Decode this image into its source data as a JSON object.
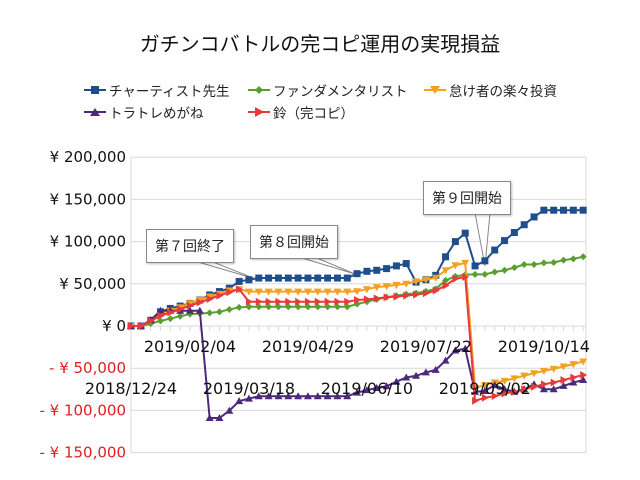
{
  "chart_data": {
    "type": "line",
    "title": "ガチンコバトルの完コピ運用の実現損益",
    "xlabel": "",
    "ylabel": "",
    "ylim": [
      -150000,
      200000
    ],
    "yticks": [
      200000,
      150000,
      100000,
      50000,
      0,
      -50000,
      -100000,
      -150000
    ],
    "ytick_labels": [
      "¥ 200,000",
      "¥ 150,000",
      "¥ 100,000",
      "¥ 50,000",
      "¥ 0",
      "- ¥ 50,000",
      "- ¥ 100,000",
      "- ¥ 150,000"
    ],
    "negative_label_color": "#e02020",
    "grid": true,
    "legend_placement": "top",
    "x_tick_labels": [
      "2018/12/24",
      "2019/02/04",
      "2019/03/18",
      "2019/04/29",
      "2019/06/10",
      "2019/07/22",
      "2019/09/02",
      "2019/10/14"
    ],
    "x": [
      "2018/12/24",
      "2018/12/31",
      "2019/01/07",
      "2019/01/14",
      "2019/01/21",
      "2019/01/28",
      "2019/02/04",
      "2019/02/11",
      "2019/02/18",
      "2019/02/25",
      "2019/03/04",
      "2019/03/11",
      "2019/03/18",
      "2019/03/25",
      "2019/04/01",
      "2019/04/08",
      "2019/04/15",
      "2019/04/22",
      "2019/04/29",
      "2019/05/06",
      "2019/05/13",
      "2019/05/20",
      "2019/05/27",
      "2019/06/03",
      "2019/06/10",
      "2019/06/17",
      "2019/06/24",
      "2019/07/01",
      "2019/07/08",
      "2019/07/15",
      "2019/07/22",
      "2019/07/29",
      "2019/08/05",
      "2019/08/12",
      "2019/08/19",
      "2019/08/26",
      "2019/09/02",
      "2019/09/09",
      "2019/09/16",
      "2019/09/23",
      "2019/09/30",
      "2019/10/07",
      "2019/10/14",
      "2019/10/21",
      "2019/10/28",
      "2019/11/04",
      "2019/11/11"
    ],
    "series": [
      {
        "name": "チャーティスト先生",
        "color": "#1f4e8c",
        "marker": "square",
        "values": [
          0,
          0,
          6800,
          16800,
          20800,
          23600,
          26800,
          30800,
          36800,
          40800,
          44800,
          52800,
          54800,
          56800,
          56800,
          56800,
          56800,
          56800,
          56800,
          56800,
          56800,
          56800,
          56800,
          62000,
          64800,
          66000,
          68000,
          71200,
          74000,
          52000,
          54800,
          60000,
          82000,
          100000,
          110000,
          71200,
          77200,
          90000,
          101200,
          110800,
          120000,
          129200,
          137200,
          137200,
          137200,
          137200,
          137200
        ]
      },
      {
        "name": "ファンダメンタリスト",
        "color": "#5a9e2f",
        "marker": "diamond",
        "values": [
          0,
          0,
          2800,
          6000,
          8800,
          11600,
          14000,
          14800,
          15600,
          16800,
          19600,
          22000,
          22800,
          22800,
          22800,
          22800,
          22800,
          22800,
          22800,
          22800,
          22800,
          22800,
          22800,
          26000,
          28800,
          31600,
          34000,
          36000,
          37600,
          39000,
          41000,
          44000,
          54000,
          58800,
          60800,
          61200,
          61200,
          64000,
          66000,
          69200,
          72800,
          72800,
          74800,
          75200,
          78000,
          79600,
          82000
        ]
      },
      {
        "name": "怠け者の楽々投資",
        "color": "#f5a020",
        "marker": "triangle-down",
        "values": [
          0,
          0,
          6000,
          13000,
          18000,
          22000,
          27000,
          31000,
          35000,
          38000,
          42000,
          43600,
          40800,
          40800,
          40800,
          40800,
          40800,
          40800,
          40800,
          40800,
          40800,
          40800,
          40800,
          41200,
          43600,
          46000,
          47200,
          48800,
          50000,
          52800,
          54800,
          57200,
          66000,
          72000,
          74800,
          -73400,
          -70000,
          -66800,
          -65000,
          -62000,
          -58800,
          -56000,
          -53200,
          -50800,
          -48000,
          -45200,
          -42000
        ]
      },
      {
        "name": "トラトレめがね",
        "color": "#4b2a7a",
        "marker": "triangle-up",
        "values": [
          0,
          0,
          6800,
          18000,
          18000,
          18000,
          18000,
          18000,
          -109000,
          -109000,
          -100400,
          -89000,
          -86000,
          -83300,
          -83300,
          -83300,
          -83300,
          -83300,
          -83300,
          -83300,
          -83300,
          -83300,
          -83300,
          -79000,
          -76000,
          -73400,
          -71400,
          -66000,
          -61000,
          -59000,
          -55000,
          -52000,
          -41000,
          -29000,
          -27000,
          -78000,
          -77000,
          -70000,
          -75000,
          -78000,
          -75000,
          -69000,
          -75000,
          -75000,
          -71000,
          -67000,
          -64000
        ]
      },
      {
        "name": "鈴（完コピ）",
        "color": "#e83a3a",
        "marker": "triangle-right",
        "values": [
          0,
          0,
          6000,
          12000,
          16000,
          20000,
          24000,
          28000,
          32000,
          36000,
          40000,
          43600,
          28800,
          28800,
          28800,
          28800,
          28800,
          28800,
          28800,
          28800,
          28800,
          28800,
          28800,
          30800,
          31600,
          32800,
          34000,
          34800,
          36000,
          37200,
          38800,
          42000,
          48000,
          56000,
          58000,
          -88500,
          -85000,
          -83000,
          -80000,
          -78000,
          -75000,
          -72000,
          -69000,
          -67000,
          -64000,
          -61000,
          -58000
        ]
      }
    ],
    "annotations": [
      {
        "text": "第７回終了",
        "x": "2019/03/25"
      },
      {
        "text": "第８回開始",
        "x": "2019/05/27"
      },
      {
        "text": "第９回開始",
        "x": "2019/09/02"
      }
    ]
  }
}
